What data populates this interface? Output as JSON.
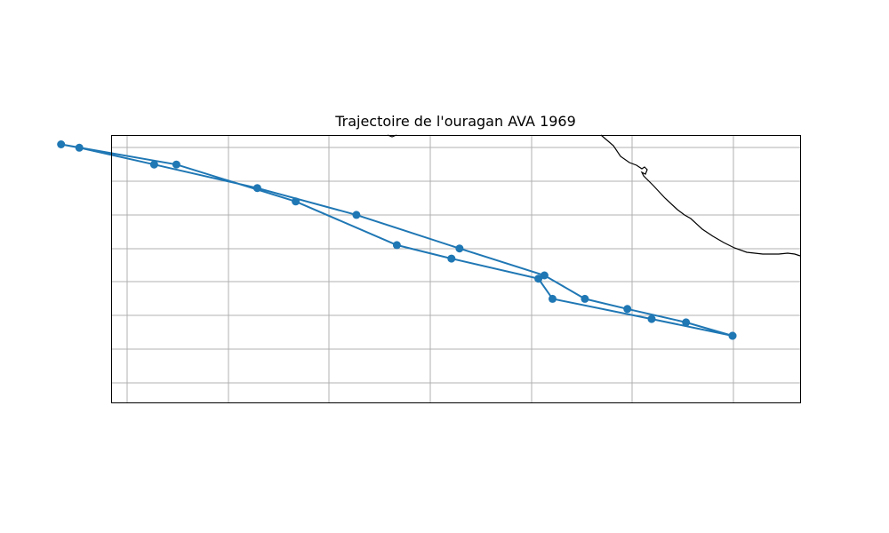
{
  "chart_data": {
    "type": "line",
    "title": "Trajectoire de l'ouragan AVA 1969",
    "xlabel": "",
    "ylabel": "",
    "grid": true,
    "legend": null,
    "map": true,
    "series": [
      {
        "color": "#1f77b4",
        "marker": "circle",
        "points": [
          {
            "lon": -100.0,
            "lat": 11.8
          },
          {
            "lon": -104.0,
            "lat": 12.3
          },
          {
            "lon": -108.9,
            "lat": 12.9
          },
          {
            "lon": -109.6,
            "lat": 13.5
          },
          {
            "lon": -113.9,
            "lat": 14.1
          },
          {
            "lon": -116.6,
            "lat": 14.5
          },
          {
            "lon": -121.6,
            "lat": 15.8
          },
          {
            "lon": -127.5,
            "lat": 16.9
          },
          {
            "lon": -133.2,
            "lat": 17.5
          },
          {
            "lon": -132.3,
            "lat": 17.4
          },
          {
            "lon": -128.6,
            "lat": 16.9
          },
          {
            "lon": -123.5,
            "lat": 16.2
          },
          {
            "lon": -118.6,
            "lat": 15.4
          },
          {
            "lon": -113.5,
            "lat": 14.4
          },
          {
            "lon": -109.3,
            "lat": 13.6
          },
          {
            "lon": -107.3,
            "lat": 12.9
          },
          {
            "lon": -105.2,
            "lat": 12.6
          },
          {
            "lon": -102.3,
            "lat": 12.2
          },
          {
            "lon": -100.0,
            "lat": 11.8
          }
        ]
      }
    ],
    "coastline_color": "#000000",
    "grid_color": "#b0b0b0"
  }
}
